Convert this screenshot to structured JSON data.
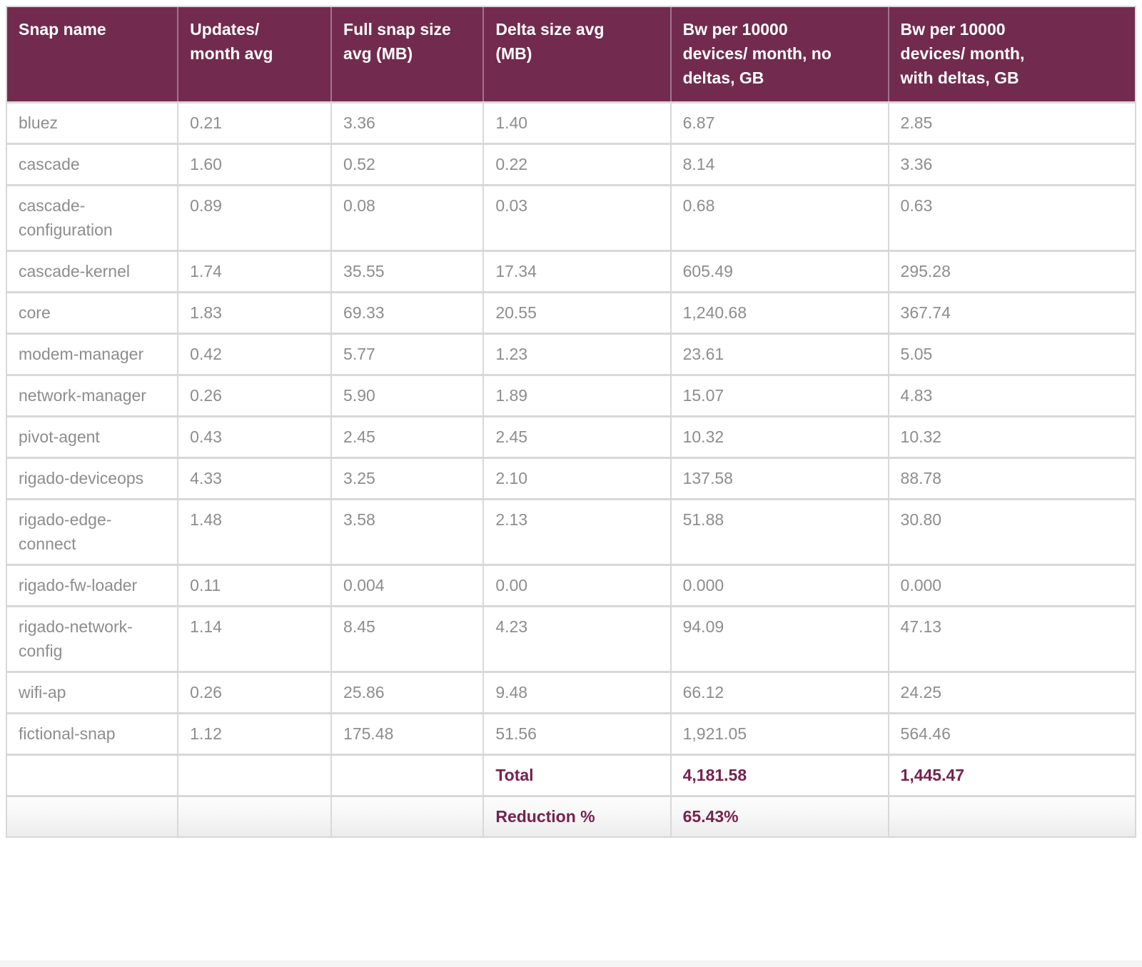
{
  "colors": {
    "header_bg": "#722b4e",
    "header_text": "#ffffff",
    "header_divider": "#9d7590",
    "body_text": "#8d8d8d",
    "accent_text": "#772150",
    "cell_border": "#d8d8d8"
  },
  "chart_data": {
    "type": "table",
    "columns": [
      "Snap name",
      "Updates/\nmonth avg",
      "Full snap size\navg (MB)",
      "Delta size avg\n(MB)",
      "Bw per 10000\ndevices/ month, no\ndeltas, GB",
      "Bw per 10000\ndevices/ month,\nwith deltas, GB"
    ],
    "rows": [
      {
        "cells": [
          "bluez",
          "0.21",
          "3.36",
          "1.40",
          "6.87",
          "2.85"
        ],
        "accent": false
      },
      {
        "cells": [
          "cascade",
          "1.60",
          "0.52",
          "0.22",
          "8.14",
          "3.36"
        ],
        "accent": false
      },
      {
        "cells": [
          "cascade-configuration",
          "0.89",
          "0.08",
          "0.03",
          "0.68",
          "0.63"
        ],
        "accent": false
      },
      {
        "cells": [
          "cascade-kernel",
          "1.74",
          "35.55",
          "17.34",
          "605.49",
          "295.28"
        ],
        "accent": false
      },
      {
        "cells": [
          "core",
          "1.83",
          "69.33",
          "20.55",
          "1,240.68",
          "367.74"
        ],
        "accent": false
      },
      {
        "cells": [
          "modem-manager",
          "0.42",
          "5.77",
          "1.23",
          "23.61",
          "5.05"
        ],
        "accent": false
      },
      {
        "cells": [
          "network-manager",
          "0.26",
          "5.90",
          "1.89",
          "15.07",
          "4.83"
        ],
        "accent": false
      },
      {
        "cells": [
          "pivot-agent",
          "0.43",
          "2.45",
          "2.45",
          "10.32",
          "10.32"
        ],
        "accent": false
      },
      {
        "cells": [
          "rigado-deviceops",
          "4.33",
          "3.25",
          "2.10",
          "137.58",
          "88.78"
        ],
        "accent": false
      },
      {
        "cells": [
          "rigado-edge-connect",
          "1.48",
          "3.58",
          "2.13",
          "51.88",
          "30.80"
        ],
        "accent": false
      },
      {
        "cells": [
          "rigado-fw-loader",
          "0.11",
          "0.004",
          "0.00",
          "0.000",
          "0.000"
        ],
        "accent": false
      },
      {
        "cells": [
          "rigado-network-config",
          "1.14",
          "8.45",
          "4.23",
          "94.09",
          "47.13"
        ],
        "accent": false
      },
      {
        "cells": [
          "wifi-ap",
          "0.26",
          "25.86",
          "9.48",
          "66.12",
          "24.25"
        ],
        "accent": false
      },
      {
        "cells": [
          "fictional-snap",
          "1.12",
          "175.48",
          "51.56",
          "1,921.05",
          "564.46"
        ],
        "accent": false
      },
      {
        "cells": [
          "",
          "",
          "",
          "Total",
          "4,181.58",
          "1,445.47"
        ],
        "accent": true
      },
      {
        "cells": [
          "",
          "",
          "",
          "Reduction %",
          "65.43%",
          ""
        ],
        "accent": true
      }
    ],
    "summary": {
      "total_no_deltas_gb": "4,181.58",
      "total_with_deltas_gb": "1,445.47",
      "reduction_percent": "65.43%"
    }
  }
}
